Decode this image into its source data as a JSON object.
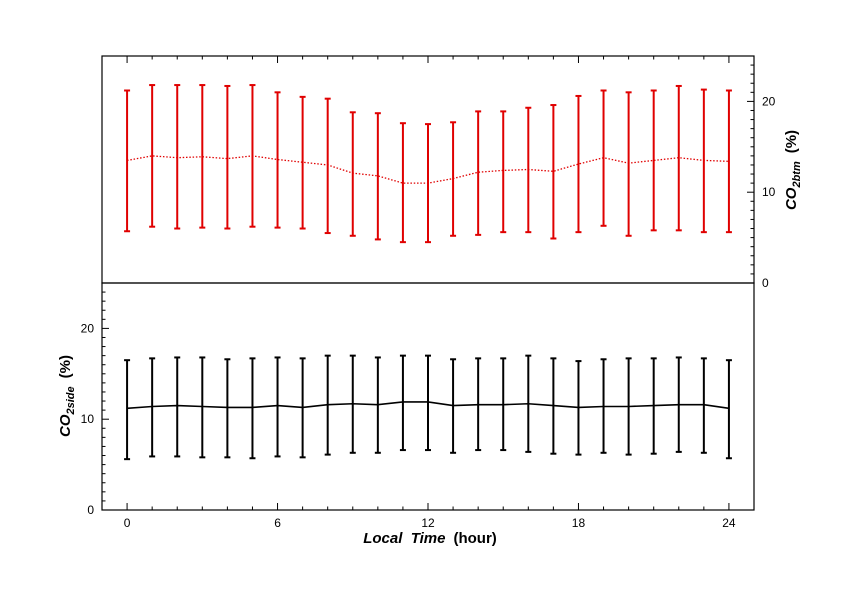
{
  "chart_data": [
    {
      "type": "line",
      "panel": "top",
      "y_axis_side": "right",
      "color": "#e00000",
      "line_style": "dotted",
      "ylabel_main": "CO",
      "ylabel_sub": "2btm",
      "ylabel_unit": "(%)",
      "ylim": [
        0,
        25
      ],
      "yticks": [
        0,
        10,
        20
      ],
      "xlim": [
        -1,
        25
      ],
      "grid": false,
      "x": [
        0,
        1,
        2,
        3,
        4,
        5,
        6,
        7,
        8,
        9,
        10,
        11,
        12,
        13,
        14,
        15,
        16,
        17,
        18,
        19,
        20,
        21,
        22,
        23,
        24
      ],
      "series": [
        {
          "mean": [
            13.5,
            14.0,
            13.8,
            13.9,
            13.7,
            14.0,
            13.6,
            13.3,
            13.0,
            12.1,
            11.8,
            11.0,
            11.0,
            11.5,
            12.2,
            12.4,
            12.5,
            12.3,
            13.1,
            13.8,
            13.2,
            13.5,
            13.8,
            13.5,
            13.4
          ],
          "upper": [
            21.2,
            21.8,
            21.8,
            21.8,
            21.7,
            21.8,
            21.0,
            20.5,
            20.3,
            18.8,
            18.7,
            17.6,
            17.5,
            17.7,
            18.9,
            18.9,
            19.3,
            19.6,
            20.6,
            21.2,
            21.0,
            21.2,
            21.7,
            21.3,
            21.2
          ],
          "lower": [
            5.7,
            6.2,
            6.0,
            6.1,
            6.0,
            6.2,
            6.1,
            6.0,
            5.5,
            5.2,
            4.8,
            4.5,
            4.5,
            5.2,
            5.3,
            5.6,
            5.6,
            4.9,
            5.6,
            6.3,
            5.2,
            5.8,
            5.8,
            5.6,
            5.6
          ]
        }
      ]
    },
    {
      "type": "line",
      "panel": "bottom",
      "y_axis_side": "left",
      "color": "#000000",
      "line_style": "solid",
      "ylabel_main": "CO",
      "ylabel_sub": "2side",
      "ylabel_unit": "(%)",
      "ylim": [
        0,
        25
      ],
      "yticks": [
        0,
        10,
        20
      ],
      "xlim": [
        -1,
        25
      ],
      "xticks": [
        0,
        6,
        12,
        18,
        24
      ],
      "xlabel_main": "Local  Time",
      "xlabel_unit": "(hour)",
      "grid": false,
      "x": [
        0,
        1,
        2,
        3,
        4,
        5,
        6,
        7,
        8,
        9,
        10,
        11,
        12,
        13,
        14,
        15,
        16,
        17,
        18,
        19,
        20,
        21,
        22,
        23,
        24
      ],
      "series": [
        {
          "mean": [
            11.2,
            11.4,
            11.5,
            11.4,
            11.3,
            11.3,
            11.5,
            11.3,
            11.6,
            11.7,
            11.6,
            11.9,
            11.9,
            11.5,
            11.6,
            11.6,
            11.7,
            11.5,
            11.3,
            11.4,
            11.4,
            11.5,
            11.6,
            11.6,
            11.2
          ],
          "upper": [
            16.5,
            16.7,
            16.8,
            16.8,
            16.6,
            16.7,
            16.8,
            16.7,
            17.0,
            17.0,
            16.8,
            17.0,
            17.0,
            16.6,
            16.7,
            16.7,
            17.0,
            16.7,
            16.4,
            16.6,
            16.7,
            16.7,
            16.8,
            16.7,
            16.5
          ],
          "lower": [
            5.6,
            5.9,
            5.9,
            5.8,
            5.8,
            5.7,
            5.9,
            5.8,
            6.1,
            6.3,
            6.3,
            6.6,
            6.6,
            6.3,
            6.6,
            6.6,
            6.4,
            6.2,
            6.1,
            6.3,
            6.1,
            6.2,
            6.4,
            6.3,
            5.7
          ]
        }
      ]
    }
  ]
}
